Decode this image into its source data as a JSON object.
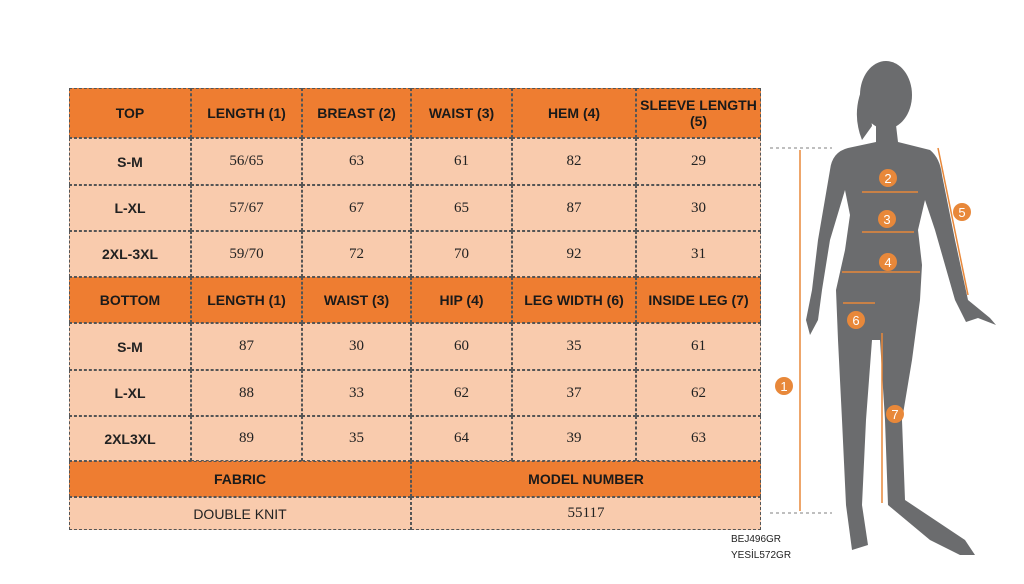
{
  "table": {
    "top_header": [
      "TOP",
      "LENGTH (1)",
      "BREAST (2)",
      "WAIST (3)",
      "HEM (4)",
      "SLEEVE LENGTH (5)"
    ],
    "top_rows": [
      [
        "S-M",
        "56/65",
        63,
        61,
        82,
        29
      ],
      [
        "L-XL",
        "57/67",
        67,
        65,
        87,
        30
      ],
      [
        "2XL-3XL",
        "59/70",
        72,
        70,
        92,
        31
      ]
    ],
    "bottom_header": [
      "BOTTOM",
      "LENGTH (1)",
      "WAIST (3)",
      "HIP (4)",
      "LEG WIDTH (6)",
      "INSIDE LEG (7)"
    ],
    "bottom_rows": [
      [
        "S-M",
        87,
        30,
        60,
        35,
        61
      ],
      [
        "L-XL",
        88,
        33,
        62,
        37,
        62
      ],
      [
        "2XL3XL",
        89,
        35,
        64,
        39,
        63
      ]
    ],
    "footer_header": [
      "FABRIC",
      "MODEL NUMBER"
    ],
    "footer_row": [
      "DOUBLE KNIT",
      55117
    ]
  },
  "codes": [
    "BEJ496GR",
    "YESİL572GR"
  ],
  "figure": {
    "markers": [
      1,
      2,
      3,
      4,
      5,
      6,
      7
    ]
  }
}
